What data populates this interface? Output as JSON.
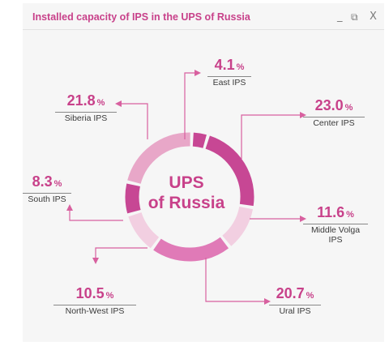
{
  "window": {
    "title": "Installed capacity of IPS in the UPS of Russia",
    "minimize_glyph": "_",
    "restore_glyph": "⧉",
    "close_glyph": "X"
  },
  "center_label": [
    "UPS",
    "of Russia"
  ],
  "unit_symbol": "%",
  "colors": {
    "accent": "#c8418a",
    "ring_light": "#e8a7c8",
    "ring_pale": "#f2cfe1",
    "ring_dark": "#c74794",
    "arrow": "#d8609f"
  },
  "chart_data": {
    "type": "pie",
    "title": "Installed capacity of IPS in the UPS of Russia",
    "unit": "%",
    "slices": [
      {
        "label": "East IPS",
        "value": 4.1,
        "display": "4.1"
      },
      {
        "label": "Center IPS",
        "value": 23.0,
        "display": "23.0"
      },
      {
        "label": "Middle Volga IPS",
        "value": 11.6,
        "display": "11.6"
      },
      {
        "label": "Ural IPS",
        "value": 20.7,
        "display": "20.7"
      },
      {
        "label": "North-West IPS",
        "value": 10.5,
        "display": "10.5"
      },
      {
        "label": "South IPS",
        "value": 8.3,
        "display": "8.3"
      },
      {
        "label": "Siberia IPS",
        "value": 21.8,
        "display": "21.8"
      }
    ]
  }
}
